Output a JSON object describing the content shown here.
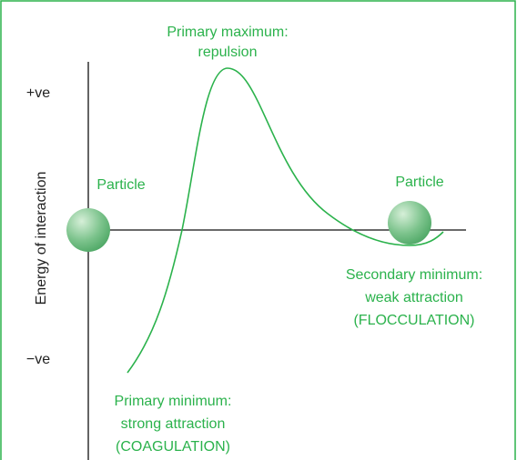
{
  "axis": {
    "y_label": "Energy of interaction",
    "positive": "+ve",
    "negative": "−ve"
  },
  "particles": [
    "Particle",
    "Particle"
  ],
  "primary_maximum": [
    "Primary maximum:",
    "repulsion"
  ],
  "secondary_minimum": [
    "Secondary minimum:",
    "weak attraction",
    "(FLOCCULATION)"
  ],
  "primary_minimum": [
    "Primary minimum:",
    "strong attraction",
    "(COAGULATION)"
  ]
}
